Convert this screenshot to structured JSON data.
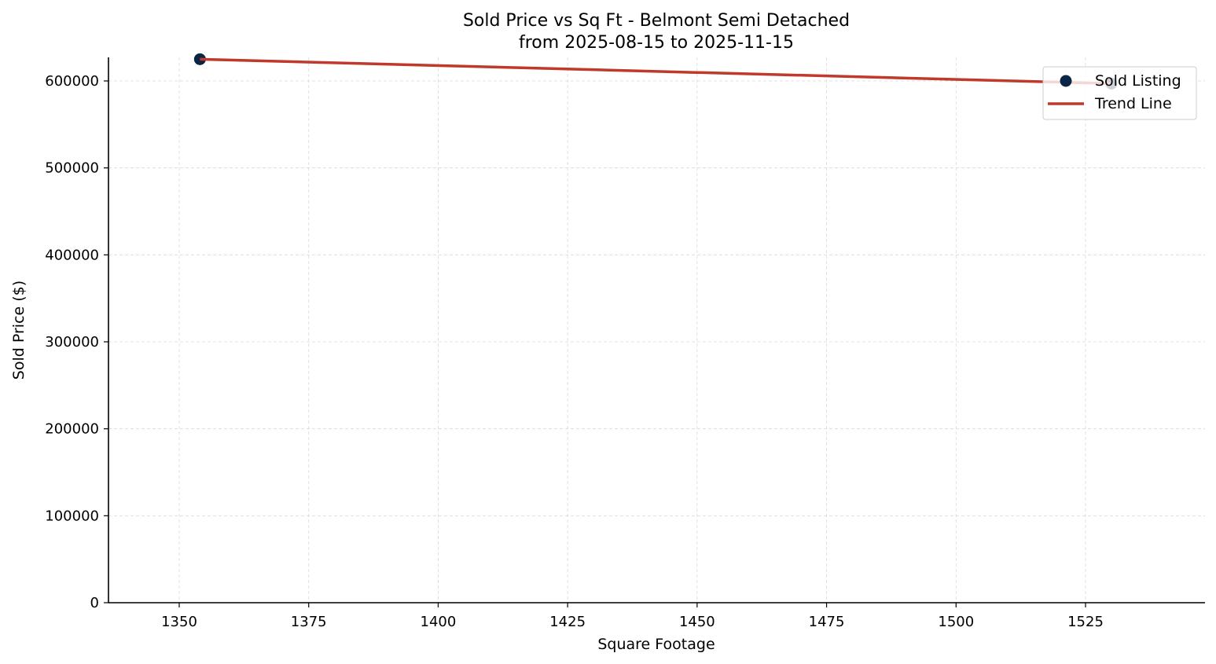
{
  "chart_data": {
    "type": "scatter",
    "title": "Sold Price vs Sq Ft - Belmont Semi Detached",
    "subtitle": "from 2025-08-15 to 2025-11-15",
    "xlabel": "Square Footage",
    "ylabel": "Sold Price ($)",
    "xlim": [
      1336.3,
      1544.7
    ],
    "ylim": [
      0,
      628000
    ],
    "xticks": [
      1350,
      1375,
      1400,
      1425,
      1450,
      1475,
      1500,
      1525
    ],
    "yticks": [
      0,
      100000,
      200000,
      300000,
      400000,
      500000,
      600000
    ],
    "grid": true,
    "legend_position": "upper right",
    "series": [
      {
        "name": "Sold Listing",
        "kind": "scatter",
        "color": "#0b2545",
        "points": [
          {
            "x": 1354,
            "y": 625000
          },
          {
            "x": 1530,
            "y": 597000
          }
        ]
      },
      {
        "name": "Trend Line",
        "kind": "line",
        "color": "#c0392b",
        "points": [
          {
            "x": 1354,
            "y": 625000
          },
          {
            "x": 1530,
            "y": 597000
          }
        ]
      }
    ]
  }
}
